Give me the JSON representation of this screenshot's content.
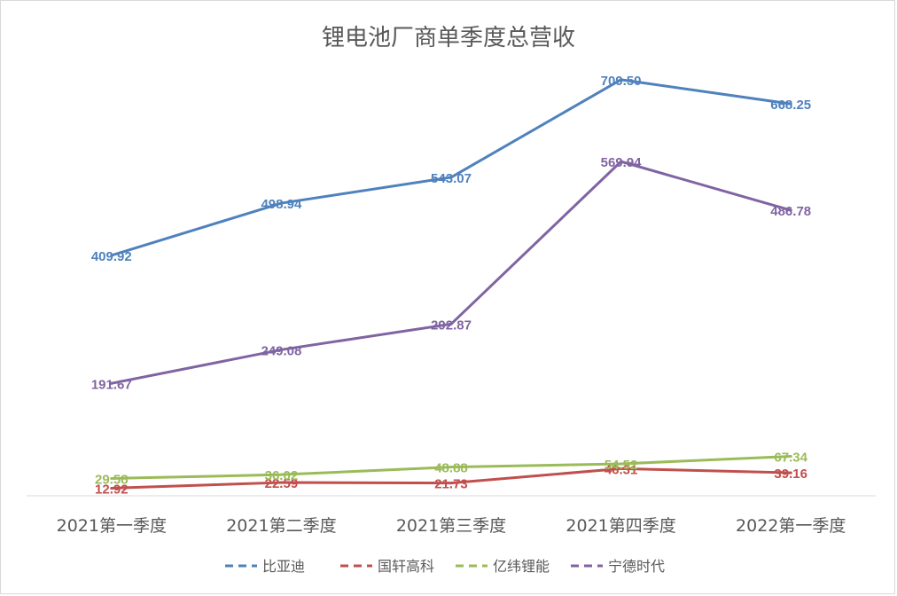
{
  "chart_data": {
    "type": "line",
    "title": "锂电池厂商单季度总营收",
    "xlabel": "",
    "ylabel": "",
    "categories": [
      "2021第一季度",
      "2021第二季度",
      "2021第三季度",
      "2021第四季度",
      "2022第一季度"
    ],
    "ylim": [
      0,
      800
    ],
    "grid": false,
    "legend_position": "bottom",
    "series": [
      {
        "name": "比亚迪",
        "color": "#4f81bd",
        "values": [
          409.92,
          498.94,
          543.07,
          709.5,
          668.25
        ],
        "labels": [
          "409.92",
          "498.94",
          "543.07",
          "709.50",
          "668.25"
        ]
      },
      {
        "name": "国轩高科",
        "color": "#c0504d",
        "values": [
          12.92,
          22.59,
          21.73,
          46.31,
          39.16
        ],
        "labels": [
          "12.92",
          "22.59",
          "21.73",
          "46.31",
          "39.16"
        ]
      },
      {
        "name": "亿纬锂能",
        "color": "#9bbb59",
        "values": [
          29.58,
          36.02,
          48.88,
          54.52,
          67.34
        ],
        "labels": [
          "29.58",
          "36.02",
          "48.88",
          "54.52",
          "67.34"
        ]
      },
      {
        "name": "宁德时代",
        "color": "#8064a2",
        "values": [
          191.67,
          249.08,
          292.87,
          569.94,
          486.78
        ],
        "labels": [
          "191.67",
          "249.08",
          "292.87",
          "569.94",
          "486.78"
        ]
      }
    ]
  }
}
